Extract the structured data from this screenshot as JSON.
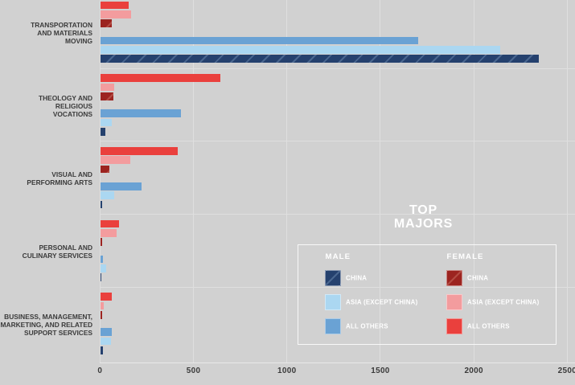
{
  "background_color": "#d1d1d1",
  "grid_color": "#dfdfdf",
  "text_color": "#3b3b3b",
  "title": {
    "lines": [
      "TOP",
      "MAJORS"
    ],
    "color": "#ffffff"
  },
  "legend": {
    "border_color": "#f2f2f2",
    "text_color": "#ffffff",
    "columns": [
      {
        "header": "MALE",
        "items": [
          {
            "label": "CHINA",
            "series": "male_china"
          },
          {
            "label": "ASIA (EXCEPT CHINA)",
            "series": "male_asia"
          },
          {
            "label": "ALL OTHERS",
            "series": "male_all_others"
          }
        ]
      },
      {
        "header": "FEMALE",
        "items": [
          {
            "label": "CHINA",
            "series": "female_china"
          },
          {
            "label": "ASIA (EXCEPT CHINA)",
            "series": "female_asia"
          },
          {
            "label": "ALL OTHERS",
            "series": "female_all_others"
          }
        ]
      }
    ]
  },
  "chart_data": {
    "type": "bar",
    "orientation": "horizontal",
    "title": "TOP MAJORS",
    "xlabel": "",
    "ylabel": "",
    "xlim": [
      0,
      2500
    ],
    "x_ticks": [
      "0",
      "500",
      "1000",
      "1500",
      "2000",
      "2500"
    ],
    "grid": true,
    "legend_position": "middle-right",
    "categories": [
      "TRANSPORTATION AND MATERIALS MOVING",
      "THEOLOGY AND RELIGIOUS VOCATIONS",
      "VISUAL AND PERFORMING ARTS",
      "PERSONAL AND CULINARY SERVICES",
      "BUSINESS, MANAGEMENT, MARKETING, AND RELATED SUPPORT SERVICES"
    ],
    "category_label_lines": [
      [
        "TRANSPORTATION",
        "AND MATERIALS",
        "MOVING"
      ],
      [
        "THEOLOGY AND",
        "RELIGIOUS",
        "VOCATIONS"
      ],
      [
        "VISUAL AND",
        "PERFORMING ARTS"
      ],
      [
        "PERSONAL AND",
        "CULINARY SERVICES"
      ],
      [
        "BUSINESS, MANAGEMENT,",
        "MARKETING, AND RELATED",
        "SUPPORT SERVICES"
      ]
    ],
    "series": [
      {
        "key": "female_all_others",
        "name": "Female - All Others",
        "color": "#ea403d",
        "hatch": false,
        "values": [
          150,
          640,
          415,
          100,
          60
        ]
      },
      {
        "key": "female_asia",
        "name": "Female - Asia (except China)",
        "color": "#f39c9e",
        "hatch": false,
        "values": [
          165,
          75,
          160,
          85,
          20
        ]
      },
      {
        "key": "female_china",
        "name": "Female - China",
        "color": "#9c2420",
        "hatch": true,
        "hatch_color": "#b34b42",
        "values": [
          60,
          70,
          50,
          10,
          10
        ]
      },
      {
        "key": "male_all_others",
        "name": "Male - All Others",
        "color": "#6aa2d4",
        "hatch": false,
        "values": [
          1700,
          430,
          220,
          15,
          60
        ]
      },
      {
        "key": "male_asia",
        "name": "Male - Asia (except China)",
        "color": "#abd7f1",
        "hatch": false,
        "values": [
          2140,
          60,
          75,
          30,
          55
        ]
      },
      {
        "key": "male_china",
        "name": "Male - China",
        "color": "#25416e",
        "hatch": true,
        "hatch_color": "#4a6790",
        "values": [
          2345,
          25,
          10,
          5,
          15
        ]
      }
    ]
  }
}
